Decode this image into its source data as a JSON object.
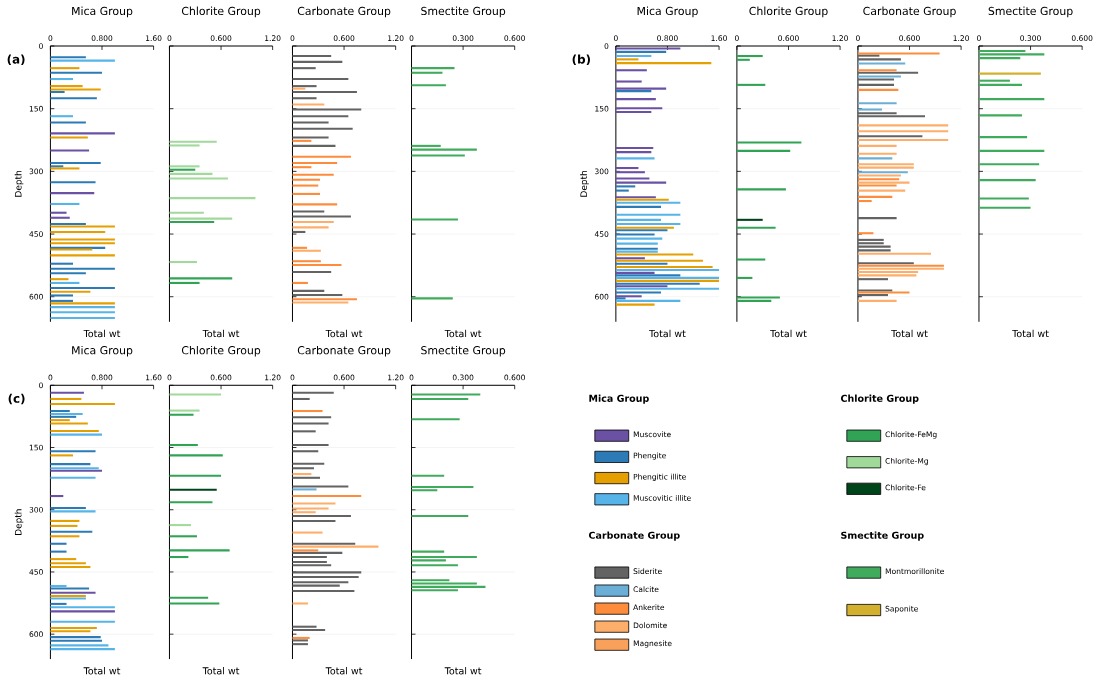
{
  "chart_data": [
    {
      "type": "bar",
      "orientation": "horizontal",
      "title": "Mica Group",
      "xlabel": "Total wt",
      "ylabel": "Depth",
      "annotations": [
        "(a)"
      ],
      "xlim": [
        0,
        1.6
      ],
      "xticks": [
        0,
        {
          "value": 0.8,
          "label": "0.800"
        },
        {
          "value": 1.6,
          "label": "1.60"
        }
      ],
      "ylim": [
        660,
        0
      ],
      "yticks": [
        0,
        150,
        300,
        450,
        600
      ],
      "grid": "y",
      "series": [
        {
          "color": "#6a51a3",
          "x": [
            209,
            250,
            352,
            399,
            411
          ],
          "values": [
            1.0,
            0.6,
            0.68,
            0.25,
            0.3
          ]
        },
        {
          "color": "#2c7bb6",
          "x": [
            27,
            64,
            110,
            125,
            183,
            280,
            288,
            326,
            426,
            483,
            521,
            533,
            544,
            579,
            597,
            610
          ],
          "values": [
            0.55,
            0.8,
            0.22,
            0.72,
            0.55,
            0.78,
            0.2,
            0.7,
            0.55,
            0.85,
            0.35,
            1.0,
            0.55,
            1.0,
            0.35,
            0.35
          ]
        },
        {
          "color": "#e69f00",
          "x": [
            53,
            96,
            104,
            219,
            293,
            432,
            445,
            463,
            472,
            487,
            501,
            558,
            588,
            616
          ],
          "values": [
            0.45,
            0.5,
            0.78,
            0.58,
            0.45,
            1.0,
            0.85,
            1.0,
            1.0,
            0.65,
            1.0,
            0.28,
            0.62,
            1.0
          ]
        },
        {
          "color": "#56b4e9",
          "x": [
            35,
            79,
            168,
            378,
            567,
            625,
            637,
            651
          ],
          "values": [
            1.0,
            0.35,
            0.35,
            0.45,
            0.45,
            1.0,
            1.0,
            1.0
          ]
        }
      ]
    },
    {
      "type": "bar",
      "orientation": "horizontal",
      "title": "Chlorite Group",
      "xlabel": "Total wt",
      "xlim": [
        0,
        1.2
      ],
      "xticks": [
        0,
        {
          "value": 0.6,
          "label": "0.600"
        },
        {
          "value": 1.2,
          "label": "1.20"
        }
      ],
      "ylim": [
        660,
        0
      ],
      "yticks": [
        0,
        150,
        300,
        450,
        600
      ],
      "grid": "y",
      "tick_labels": "x",
      "series": [
        {
          "color": "#31a354",
          "x": [
            296,
            421,
            556,
            567
          ],
          "values": [
            0.3,
            0.52,
            0.73,
            0.35
          ]
        },
        {
          "color": "#a1d99b",
          "x": [
            229,
            238,
            288,
            306,
            317,
            364,
            399,
            413,
            517
          ],
          "values": [
            0.55,
            0.35,
            0.35,
            0.5,
            0.68,
            1.0,
            0.4,
            0.73,
            0.32
          ]
        }
      ]
    },
    {
      "type": "bar",
      "orientation": "horizontal",
      "title": "Carbonate Group",
      "xlabel": "Total wt",
      "xlim": [
        0,
        1.2
      ],
      "xticks": [
        0,
        {
          "value": 0.6,
          "label": "0.600"
        },
        {
          "value": 1.2,
          "label": "1.20"
        }
      ],
      "ylim": [
        660,
        0
      ],
      "yticks": [
        0,
        150,
        300,
        450,
        600
      ],
      "grid": "y",
      "tick_labels": "x",
      "series": [
        {
          "color": "#636363",
          "x": [
            24,
            38,
            53,
            79,
            96,
            110,
            125,
            152,
            168,
            183,
            198,
            219,
            239,
            396,
            408,
            445,
            541,
            586,
            596
          ],
          "values": [
            0.45,
            0.58,
            0.27,
            0.65,
            0.28,
            0.75,
            0.28,
            0.8,
            0.65,
            0.42,
            0.7,
            0.42,
            0.5,
            0.37,
            0.68,
            0.15,
            0.45,
            0.37,
            0.58
          ]
        },
        {
          "color": "#fd8d3c",
          "x": [
            227,
            265,
            280,
            290,
            308,
            320,
            334,
            354,
            379,
            483,
            515,
            524,
            567,
            606
          ],
          "values": [
            0.22,
            0.68,
            0.52,
            0.22,
            0.48,
            0.32,
            0.3,
            0.32,
            0.52,
            0.17,
            0.33,
            0.57,
            0.18,
            0.75
          ]
        },
        {
          "color": "#fdae6b",
          "x": [
            102,
            140,
            421,
            434,
            490,
            614
          ],
          "values": [
            0.15,
            0.37,
            0.48,
            0.42,
            0.33,
            0.65
          ]
        }
      ]
    },
    {
      "type": "bar",
      "orientation": "horizontal",
      "title": "Smectite Group",
      "xlabel": "Total wt",
      "xlim": [
        0,
        0.6
      ],
      "xticks": [
        0,
        {
          "value": 0.3,
          "label": "0.300"
        },
        {
          "value": 0.6,
          "label": "0.600"
        }
      ],
      "ylim": [
        660,
        0
      ],
      "yticks": [
        0,
        150,
        300,
        450,
        600
      ],
      "grid": "y",
      "tick_labels": "x",
      "series": [
        {
          "color": "#41ab5d",
          "x": [
            53,
            64,
            94,
            239,
            248,
            262,
            415,
            604
          ],
          "values": [
            0.25,
            0.18,
            0.2,
            0.17,
            0.38,
            0.31,
            0.27,
            0.24
          ]
        }
      ]
    },
    {
      "type": "bar",
      "orientation": "horizontal",
      "title": "Mica Group",
      "xlabel": "Total wt",
      "ylabel": "Depth",
      "annotations": [
        "(b)"
      ],
      "xlim": [
        0,
        1.6
      ],
      "xticks": [
        0,
        {
          "value": 0.8,
          "label": "0.800"
        },
        {
          "value": 1.6,
          "label": "1.60"
        }
      ],
      "ylim": [
        660,
        0
      ],
      "yticks": [
        0,
        150,
        300,
        450,
        600
      ],
      "grid": "y",
      "series": [
        {
          "color": "#6a51a3",
          "x": [
            6,
            58,
            85,
            102,
            127,
            149,
            158,
            244,
            254,
            292,
            302,
            317,
            327,
            362,
            508,
            543,
            575,
            599
          ],
          "values": [
            1.0,
            0.48,
            0.4,
            0.78,
            0.62,
            0.72,
            0.55,
            0.58,
            0.55,
            0.35,
            0.45,
            0.52,
            0.78,
            0.62,
            0.45,
            0.6,
            0.8,
            0.4
          ]
        },
        {
          "color": "#2c7bb6",
          "x": [
            14,
            108,
            336,
            346,
            385,
            441,
            451,
            485,
            521,
            549,
            569,
            590,
            604
          ],
          "values": [
            0.78,
            0.55,
            0.3,
            0.2,
            0.7,
            0.8,
            0.6,
            0.65,
            0.8,
            1.0,
            1.3,
            0.7,
            0.15
          ]
        },
        {
          "color": "#e69f00",
          "x": [
            32,
            41,
            368,
            435,
            499,
            514,
            529,
            562,
            619
          ],
          "values": [
            0.35,
            1.48,
            0.82,
            0.9,
            1.2,
            1.35,
            1.5,
            1.6,
            0.6
          ]
        },
        {
          "color": "#56b4e9",
          "x": [
            24,
            269,
            375,
            404,
            416,
            426,
            461,
            473,
            492,
            536,
            555,
            581,
            610
          ],
          "values": [
            0.55,
            0.6,
            1.0,
            1.0,
            0.7,
            1.0,
            0.72,
            0.65,
            0.65,
            1.6,
            1.6,
            1.6,
            1.0
          ]
        }
      ]
    },
    {
      "type": "bar",
      "orientation": "horizontal",
      "title": "Chlorite Group",
      "xlabel": "Total wt",
      "xlim": [
        0,
        1.2
      ],
      "xticks": [
        0,
        {
          "value": 0.6,
          "label": "0.600"
        },
        {
          "value": 1.2,
          "label": "1.20"
        }
      ],
      "ylim": [
        660,
        0
      ],
      "yticks": [
        0,
        150,
        300,
        450,
        600
      ],
      "grid": "y",
      "tick_labels": "x",
      "series": [
        {
          "color": "#31a354",
          "x": [
            24,
            33,
            93,
            231,
            251,
            343,
            435,
            511,
            555,
            602,
            610
          ],
          "values": [
            0.3,
            0.15,
            0.33,
            0.75,
            0.62,
            0.57,
            0.45,
            0.33,
            0.18,
            0.5,
            0.4
          ]
        },
        {
          "color": "#00441b",
          "x": [
            416
          ],
          "values": [
            0.3
          ]
        }
      ]
    },
    {
      "type": "bar",
      "orientation": "horizontal",
      "title": "Carbonate Group",
      "xlabel": "Total wt",
      "xlim": [
        0,
        1.2
      ],
      "xticks": [
        0,
        {
          "value": 0.6,
          "label": "0.600"
        },
        {
          "value": 1.2,
          "label": "1.20"
        }
      ],
      "ylim": [
        660,
        0
      ],
      "yticks": [
        0,
        150,
        300,
        450,
        600
      ],
      "grid": "y",
      "tick_labels": "x",
      "series": [
        {
          "color": "#636363",
          "x": [
            23,
            32,
            64,
            80,
            93,
            161,
            168,
            216,
            412,
            464,
            472,
            480,
            489,
            520,
            558,
            585,
            596
          ],
          "values": [
            0.25,
            0.5,
            0.7,
            0.42,
            0.42,
            0.45,
            0.78,
            0.75,
            0.45,
            0.3,
            0.3,
            0.38,
            0.38,
            0.65,
            0.35,
            0.4,
            0.35
          ]
        },
        {
          "color": "#6baed6",
          "x": [
            42,
            73,
            137,
            152,
            269,
            302
          ],
          "values": [
            0.55,
            0.5,
            0.45,
            0.28,
            0.4,
            0.58
          ]
        },
        {
          "color": "#fd8d3c",
          "x": [
            18,
            58,
            105,
            319,
            334,
            361,
            371,
            448,
            526,
            590
          ],
          "values": [
            0.95,
            0.45,
            0.47,
            0.48,
            0.45,
            0.4,
            0.16,
            0.18,
            1.0,
            0.6
          ]
        },
        {
          "color": "#fdae6b",
          "x": [
            190,
            204,
            225,
            239,
            258,
            283,
            291,
            310,
            327,
            346,
            497,
            533,
            541,
            549,
            610
          ],
          "values": [
            1.05,
            1.05,
            1.05,
            0.45,
            0.45,
            0.65,
            0.65,
            0.5,
            0.6,
            0.55,
            0.85,
            1.0,
            0.7,
            0.68,
            0.45
          ]
        }
      ]
    },
    {
      "type": "bar",
      "orientation": "horizontal",
      "title": "Smectite Group",
      "xlabel": "Total wt",
      "xlim": [
        0,
        0.6
      ],
      "xticks": [
        0,
        {
          "value": 0.3,
          "label": "0.300"
        },
        {
          "value": 0.6,
          "label": "0.600"
        }
      ],
      "ylim": [
        660,
        0
      ],
      "yticks": [
        0,
        150,
        300,
        450,
        600
      ],
      "grid": "y",
      "tick_labels": "x",
      "series": [
        {
          "color": "#41ab5d",
          "x": [
            12,
            20,
            29,
            83,
            93,
            127,
            166,
            218,
            251,
            283,
            321,
            365,
            387
          ],
          "values": [
            0.27,
            0.38,
            0.24,
            0.18,
            0.25,
            0.38,
            0.25,
            0.28,
            0.38,
            0.35,
            0.33,
            0.29,
            0.3
          ]
        },
        {
          "color": "#d4b02f",
          "x": [
            66
          ],
          "values": [
            0.36
          ]
        }
      ]
    },
    {
      "type": "bar",
      "orientation": "horizontal",
      "title": "Mica Group",
      "xlabel": "Total wt",
      "ylabel": "Depth",
      "annotations": [
        "(c)"
      ],
      "legend": "right",
      "legend_title": "Mica Group",
      "xlim": [
        0,
        1.6
      ],
      "xticks": [
        0,
        {
          "value": 0.8,
          "label": "0.800"
        },
        {
          "value": 1.6,
          "label": "1.60"
        }
      ],
      "ylim": [
        660,
        0
      ],
      "yticks": [
        0,
        150,
        300,
        450,
        600
      ],
      "grid": "y",
      "series": [
        {
          "name": "Muscovite",
          "color": "#6a51a3",
          "x": [
            18,
            206,
            267,
            500,
            545
          ],
          "values": [
            0.52,
            0.8,
            0.2,
            0.7,
            1.0
          ]
        },
        {
          "name": "Phengite",
          "color": "#2c7bb6",
          "x": [
            62,
            76,
            159,
            190,
            296,
            353,
            382,
            401,
            490,
            527,
            607,
            616
          ],
          "values": [
            0.3,
            0.4,
            0.7,
            0.62,
            0.55,
            0.65,
            0.25,
            0.25,
            0.6,
            0.25,
            0.78,
            0.8
          ]
        },
        {
          "name": "Phengitic illite",
          "color": "#e69f00",
          "x": [
            33,
            45,
            84,
            92,
            110,
            169,
            327,
            339,
            364,
            419,
            429,
            438,
            508,
            585,
            593
          ],
          "values": [
            0.48,
            1.0,
            0.3,
            0.58,
            0.75,
            0.35,
            0.45,
            0.42,
            0.45,
            0.4,
            0.55,
            0.62,
            0.55,
            0.72,
            0.62
          ]
        },
        {
          "name": "Muscovitic illite",
          "color": "#56b4e9",
          "x": [
            69,
            119,
            200,
            223,
            304,
            484,
            514,
            535,
            570,
            627,
            636
          ],
          "values": [
            0.5,
            0.8,
            0.75,
            0.7,
            0.7,
            0.25,
            0.55,
            1.0,
            1.0,
            0.9,
            1.0
          ]
        }
      ]
    },
    {
      "type": "bar",
      "orientation": "horizontal",
      "title": "Chlorite Group",
      "xlabel": "Total wt",
      "legend": "right",
      "legend_title": "Chlorite Group",
      "xlim": [
        0,
        1.2
      ],
      "xticks": [
        0,
        {
          "value": 0.6,
          "label": "0.600"
        },
        {
          "value": 1.2,
          "label": "1.20"
        }
      ],
      "ylim": [
        660,
        0
      ],
      "yticks": [
        0,
        150,
        300,
        450,
        600
      ],
      "grid": "y",
      "tick_labels": "x",
      "series": [
        {
          "name": "Chlorite-FeMg",
          "color": "#31a354",
          "x": [
            71,
            144,
            169,
            218,
            282,
            364,
            398,
            414,
            512,
            526
          ],
          "values": [
            0.28,
            0.33,
            0.62,
            0.6,
            0.5,
            0.32,
            0.7,
            0.22,
            0.45,
            0.58
          ]
        },
        {
          "name": "Chlorite-Mg",
          "color": "#a1d99b",
          "x": [
            22,
            61,
            337
          ],
          "values": [
            0.6,
            0.35,
            0.25
          ]
        },
        {
          "name": "Chlorite-Fe",
          "color": "#00441b",
          "x": [
            252
          ],
          "values": [
            0.55
          ]
        }
      ]
    },
    {
      "type": "bar",
      "orientation": "horizontal",
      "title": "Carbonate Group",
      "xlabel": "Total wt",
      "legend": "right",
      "legend_title": "Carbonate Group",
      "xlim": [
        0,
        1.2
      ],
      "xticks": [
        0,
        {
          "value": 0.6,
          "label": "0.600"
        },
        {
          "value": 1.2,
          "label": "1.20"
        }
      ],
      "ylim": [
        660,
        0
      ],
      "yticks": [
        0,
        150,
        300,
        450,
        600
      ],
      "grid": "y",
      "tick_labels": "x",
      "series": [
        {
          "name": "Siderite",
          "color": "#636363",
          "x": [
            18,
            33,
            77,
            92,
            111,
            144,
            159,
            189,
            200,
            223,
            244,
            315,
            327,
            382,
            404,
            414,
            426,
            434,
            451,
            462,
            475,
            483,
            496,
            582,
            590,
            615,
            624
          ],
          "values": [
            0.48,
            0.2,
            0.45,
            0.42,
            0.27,
            0.42,
            0.3,
            0.37,
            0.25,
            0.32,
            0.65,
            0.68,
            0.5,
            0.73,
            0.58,
            0.4,
            0.4,
            0.45,
            0.8,
            0.77,
            0.65,
            0.55,
            0.72,
            0.28,
            0.38,
            0.18,
            0.18
          ]
        },
        {
          "name": "Calcite",
          "color": "#6baed6",
          "x": [
            251
          ],
          "values": [
            0.28
          ]
        },
        {
          "name": "Ankerite",
          "color": "#fd8d3c",
          "x": [
            62,
            267,
            398,
            609
          ],
          "values": [
            0.35,
            0.8,
            0.3,
            0.2
          ]
        },
        {
          "name": "Dolomite",
          "color": "#fdae6b",
          "x": [
            214,
            285,
            297,
            306,
            355,
            389,
            526
          ],
          "values": [
            0.22,
            0.5,
            0.42,
            0.27,
            0.35,
            1.0,
            0.18
          ]
        },
        {
          "name": "Magnesite",
          "color": "#f9a05a"
        }
      ]
    },
    {
      "type": "bar",
      "orientation": "horizontal",
      "title": "Smectite Group",
      "xlabel": "Total wt",
      "legend": "right",
      "legend_title": "Smectite Group",
      "xlim": [
        0,
        0.6
      ],
      "xticks": [
        0,
        {
          "value": 0.3,
          "label": "0.300"
        },
        {
          "value": 0.6,
          "label": "0.600"
        }
      ],
      "ylim": [
        660,
        0
      ],
      "yticks": [
        0,
        150,
        300,
        450,
        600
      ],
      "grid": "y",
      "tick_labels": "x",
      "series": [
        {
          "name": "Montmorillonite",
          "color": "#41ab5d",
          "x": [
            22,
            33,
            82,
            218,
            245,
            253,
            315,
            401,
            414,
            422,
            434,
            470,
            478,
            486,
            494
          ],
          "values": [
            0.4,
            0.33,
            0.28,
            0.19,
            0.36,
            0.15,
            0.33,
            0.19,
            0.38,
            0.2,
            0.27,
            0.22,
            0.38,
            0.43,
            0.27
          ]
        },
        {
          "name": "Saponite",
          "color": "#d4b02f"
        }
      ]
    }
  ]
}
